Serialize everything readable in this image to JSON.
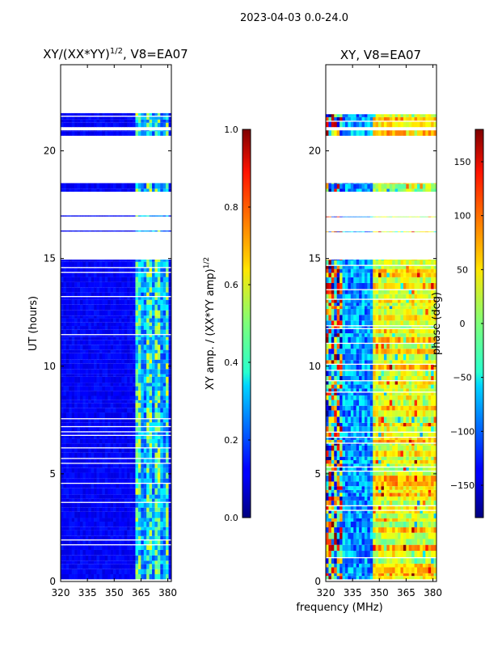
{
  "suptitle": "2023-04-03 0.0-24.0",
  "shared_xlabel": "frequency (MHz)",
  "chart_data": [
    {
      "type": "heatmap",
      "title_main": "XY/(XX*YY)",
      "title_exp": "1/2",
      "title_suffix": ", V8=EA07",
      "xlim": [
        320,
        382
      ],
      "ylim": [
        0,
        24
      ],
      "x_ticks": [
        "320",
        "335",
        "350",
        "365",
        "380"
      ],
      "x_tick_values": [
        320,
        335,
        350,
        365,
        380
      ],
      "y_ticks": [
        "0",
        "5",
        "10",
        "15",
        "20"
      ],
      "y_tick_values": [
        0,
        5,
        10,
        15,
        20
      ],
      "ylabel": "UT (hours)",
      "colorbar": {
        "range": [
          0.0,
          1.0
        ],
        "ticks": [
          "0.0",
          "0.2",
          "0.4",
          "0.6",
          "0.8",
          "1.0"
        ],
        "tick_values": [
          0.0,
          0.2,
          0.4,
          0.6,
          0.8,
          1.0
        ],
        "label_main": "XY amp. / (XX*YY amp)",
        "label_exp": "1/2",
        "colormap": "jet"
      },
      "data_hours": [
        [
          0.1,
          14.95
        ],
        [
          16.25,
          16.3
        ],
        [
          16.95,
          17.0
        ],
        [
          18.1,
          18.5
        ],
        [
          20.7,
          20.95
        ],
        [
          21.1,
          21.75
        ]
      ],
      "bright_band_MHz": [
        362,
        381
      ],
      "value_background": 0.12,
      "value_band_peak": 0.5
    },
    {
      "type": "heatmap",
      "title": "XY, V8=EA07",
      "xlim": [
        320,
        382
      ],
      "ylim": [
        0,
        24
      ],
      "x_ticks": [
        "320",
        "335",
        "350",
        "365",
        "380"
      ],
      "x_tick_values": [
        320,
        335,
        350,
        365,
        380
      ],
      "y_ticks": [
        "0",
        "5",
        "10",
        "15",
        "20"
      ],
      "y_tick_values": [
        0,
        5,
        10,
        15,
        20
      ],
      "colorbar": {
        "range": [
          -180,
          180
        ],
        "ticks": [
          "−150",
          "−100",
          "−50",
          "0",
          "50",
          "100",
          "150"
        ],
        "tick_values": [
          -150,
          -100,
          -50,
          0,
          50,
          100,
          150
        ],
        "label": "phase (deg)",
        "colormap": "jet"
      },
      "data_hours": [
        [
          0.1,
          14.95
        ],
        [
          16.25,
          16.3
        ],
        [
          16.95,
          17.0
        ],
        [
          18.1,
          18.5
        ],
        [
          20.7,
          20.95
        ],
        [
          21.1,
          21.75
        ]
      ],
      "phase_regions_MHz": {
        "noisy": [
          320,
          330
        ],
        "blue": [
          330,
          347
        ],
        "yellow": [
          347,
          382
        ]
      }
    }
  ]
}
